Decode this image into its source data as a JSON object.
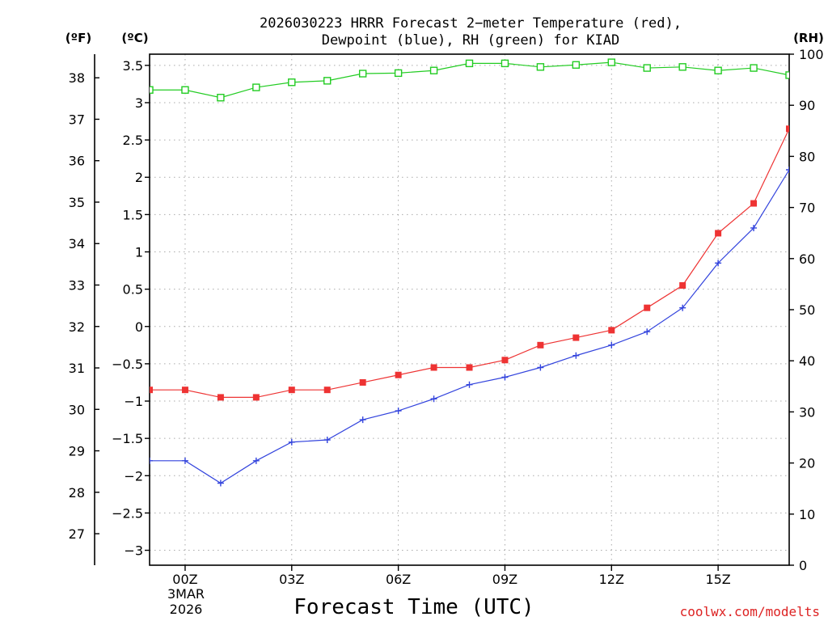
{
  "chart_data": {
    "type": "line",
    "title_line1": "2026030223 HRRR Forecast 2−meter Temperature (red),",
    "title_line2": "Dewpoint (blue), RH (green) for KIAD",
    "unit_labels": {
      "fahrenheit": "(ºF)",
      "celsius": "(ºC)",
      "rh": "(RH)"
    },
    "xlabel": "Forecast Time (UTC)",
    "credit": "coolwx.com/modelts",
    "x_range": [
      -1,
      17
    ],
    "x_ticks": [
      {
        "x": 0,
        "label": "00Z"
      },
      {
        "x": 3,
        "label": "03Z"
      },
      {
        "x": 6,
        "label": "06Z"
      },
      {
        "x": 9,
        "label": "09Z"
      },
      {
        "x": 12,
        "label": "12Z"
      },
      {
        "x": 15,
        "label": "15Z"
      }
    ],
    "date_label": [
      "3MAR",
      "2026"
    ],
    "y_celsius": {
      "range": [
        -3.2,
        3.65
      ],
      "ticks": [
        "3.5",
        "3",
        "2.5",
        "2",
        "1.5",
        "1",
        "0.5",
        "0",
        "−0.5",
        "−1",
        "−1.5",
        "−2",
        "−2.5",
        "−3"
      ],
      "tick_values": [
        3.5,
        3,
        2.5,
        2,
        1.5,
        1,
        0.5,
        0,
        -0.5,
        -1,
        -1.5,
        -2,
        -2.5,
        -3
      ]
    },
    "y_fahrenheit": {
      "ticks": [
        "38",
        "37",
        "36",
        "35",
        "34",
        "33",
        "32",
        "31",
        "30",
        "29",
        "28",
        "27"
      ],
      "tick_values": [
        38,
        37,
        36,
        35,
        34,
        33,
        32,
        31,
        30,
        29,
        28,
        27
      ]
    },
    "y_rh": {
      "range": [
        0,
        100
      ],
      "ticks": [
        "100",
        "90",
        "80",
        "70",
        "60",
        "50",
        "40",
        "30",
        "20",
        "10",
        "0"
      ],
      "tick_values": [
        100,
        90,
        80,
        70,
        60,
        50,
        40,
        30,
        20,
        10,
        0
      ]
    },
    "x": [
      -1,
      0,
      1,
      2,
      3,
      4,
      5,
      6,
      7,
      8,
      9,
      10,
      11,
      12,
      13,
      14,
      15,
      16,
      17
    ],
    "series": [
      {
        "name": "Temperature",
        "axis": "celsius",
        "color": "#ee3333",
        "marker": "square",
        "values": [
          -0.85,
          -0.85,
          -0.95,
          -0.95,
          -0.85,
          -0.85,
          -0.75,
          -0.65,
          -0.55,
          -0.55,
          -0.45,
          -0.25,
          -0.15,
          -0.05,
          0.25,
          0.55,
          1.25,
          1.65,
          2.65
        ]
      },
      {
        "name": "Dewpoint",
        "axis": "celsius",
        "color": "#3344dd",
        "marker": "plus",
        "values": [
          -1.8,
          -1.8,
          -2.1,
          -1.8,
          -1.55,
          -1.52,
          -1.25,
          -1.13,
          -0.97,
          -0.78,
          -0.68,
          -0.55,
          -0.39,
          -0.25,
          -0.07,
          0.25,
          0.85,
          1.32,
          2.1
        ]
      },
      {
        "name": "RH",
        "axis": "rh",
        "color": "#22cc22",
        "marker": "open-square",
        "values": [
          93,
          93,
          91.5,
          93.5,
          94.5,
          94.8,
          96.2,
          96.3,
          96.8,
          98.2,
          98.2,
          97.5,
          97.9,
          98.4,
          97.3,
          97.5,
          96.8,
          97.3,
          95.9
        ]
      }
    ]
  }
}
